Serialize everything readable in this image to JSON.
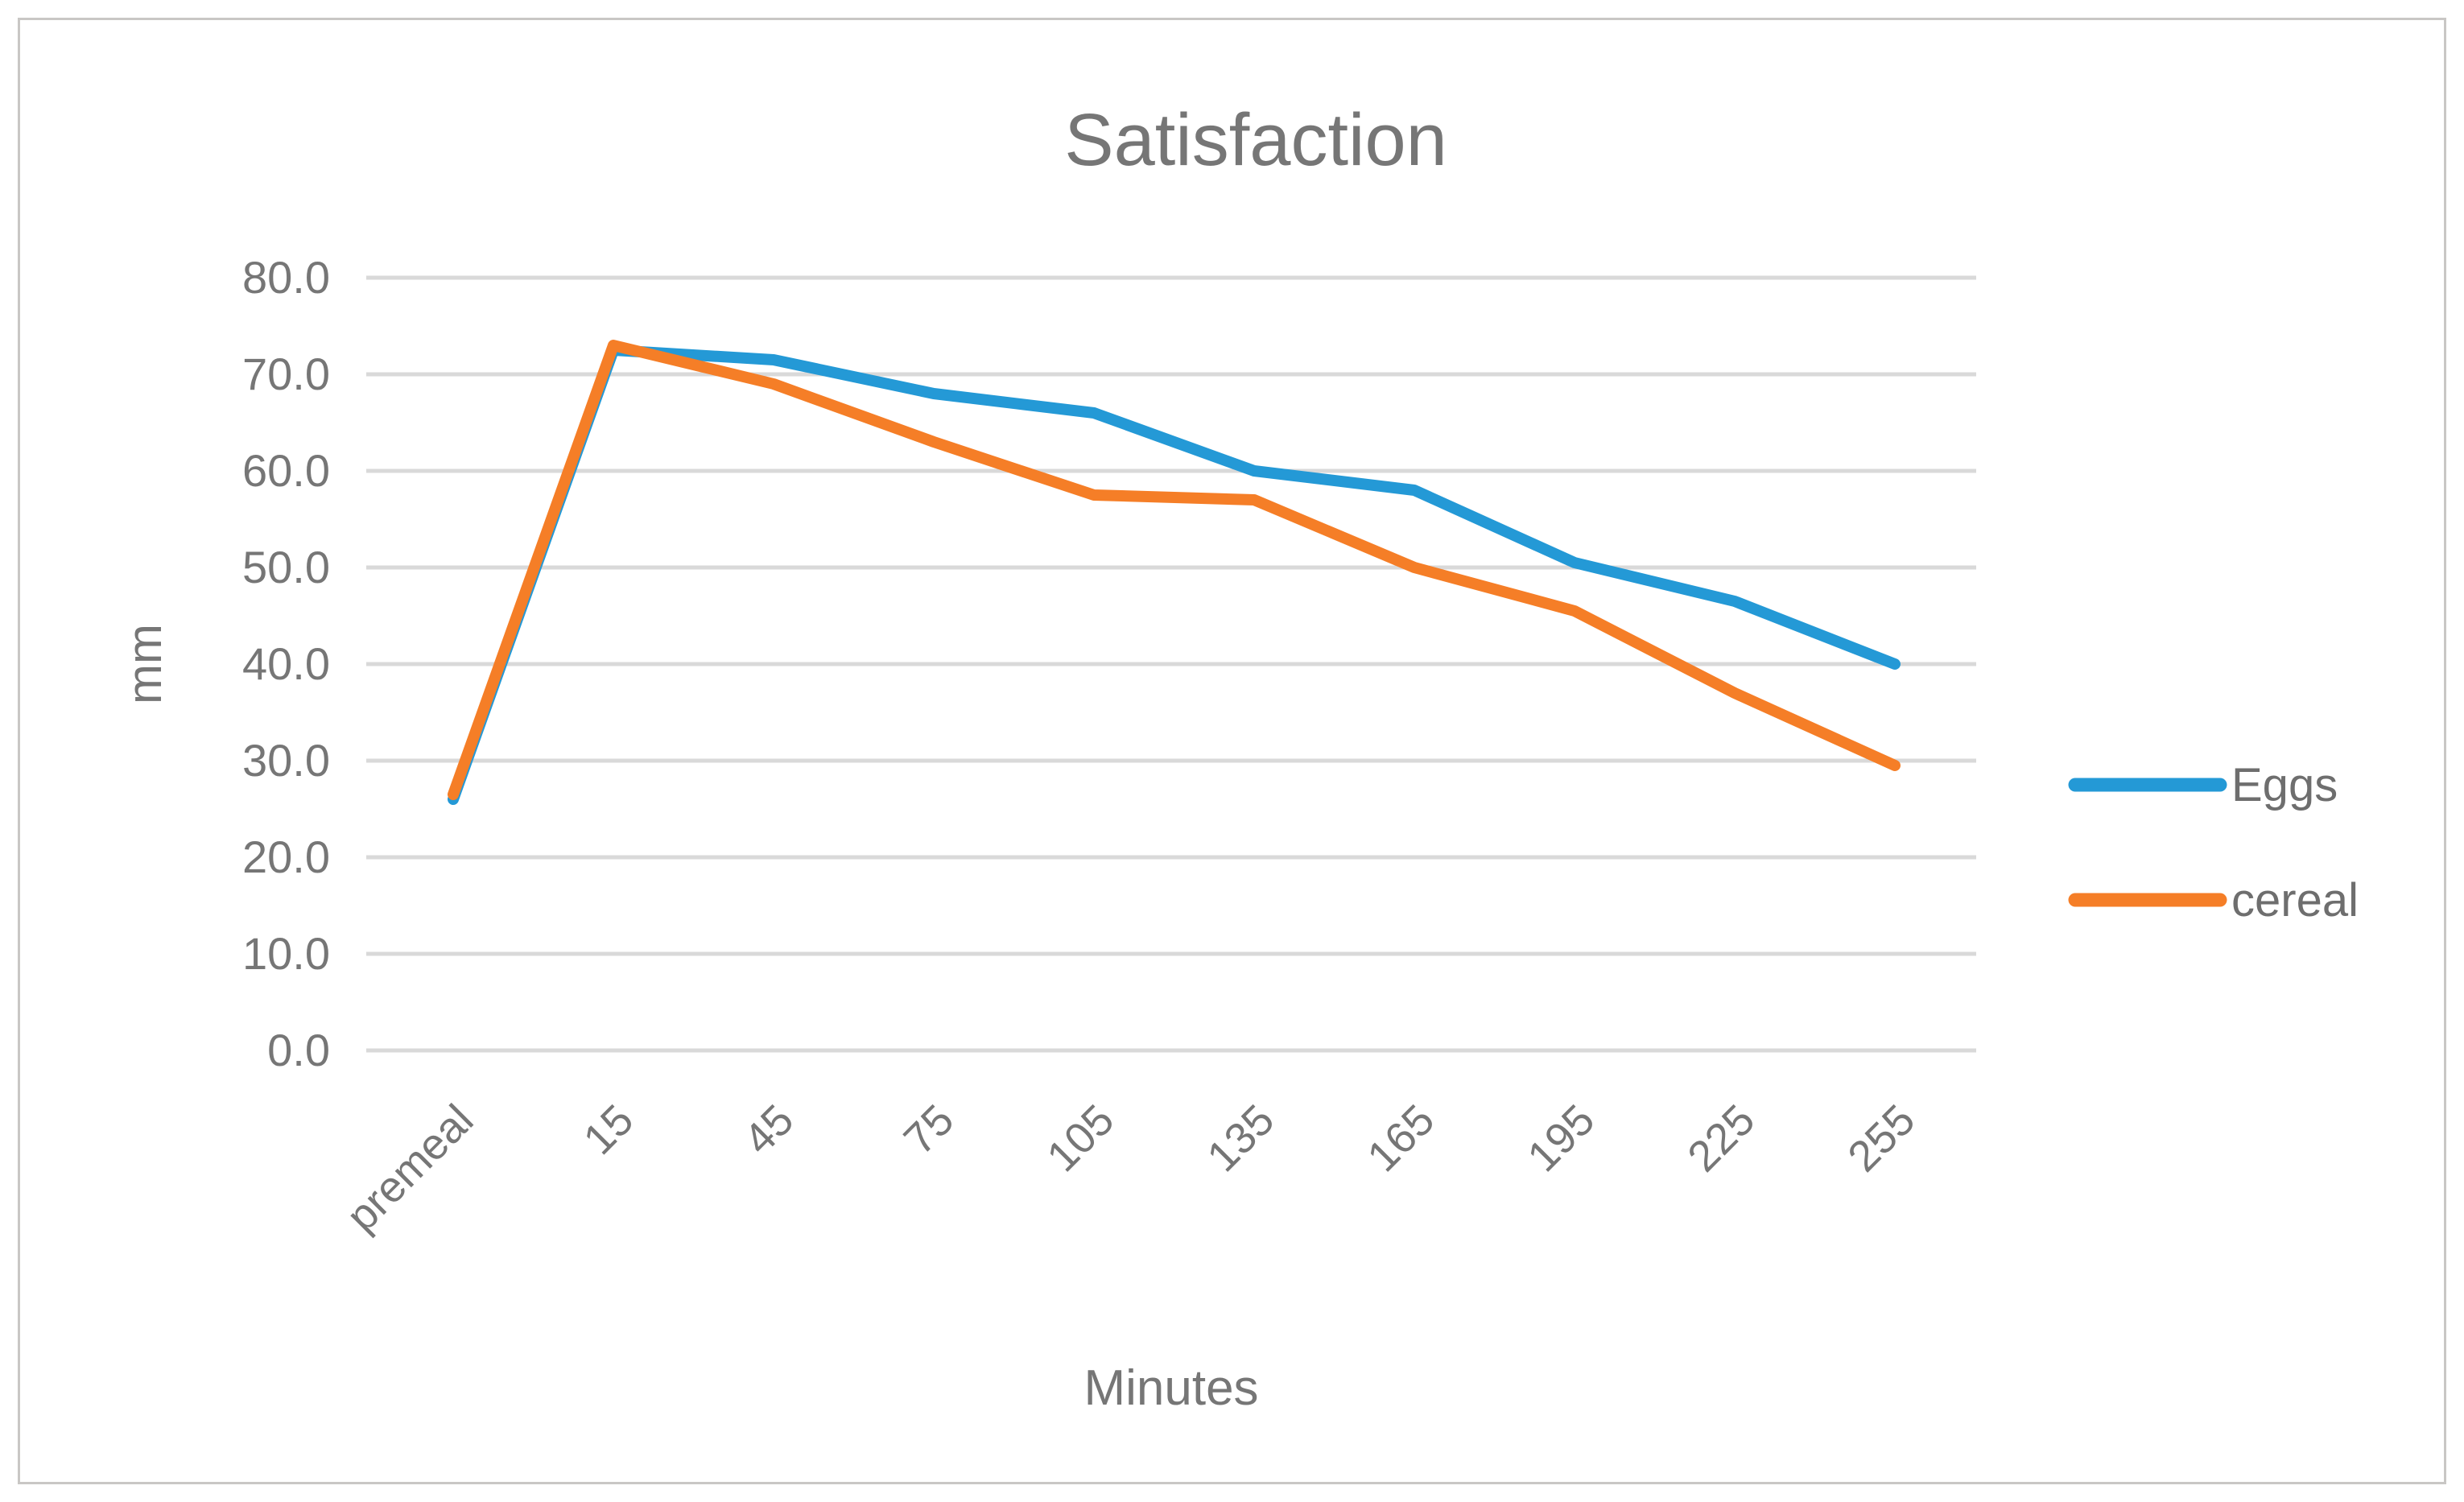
{
  "chart_data": {
    "type": "line",
    "title": "Satisfaction",
    "xlabel": "Minutes",
    "ylabel": "mm",
    "categories": [
      "premeal",
      "15",
      "45",
      "75",
      "105",
      "135",
      "165",
      "195",
      "225",
      "255"
    ],
    "series": [
      {
        "name": "Eggs",
        "color": "#2499d6",
        "values": [
          26.0,
          72.5,
          71.5,
          68.0,
          66.0,
          60.0,
          58.0,
          50.5,
          46.5,
          40.0
        ]
      },
      {
        "name": "cereal",
        "color": "#f57e27",
        "values": [
          26.5,
          73.0,
          69.0,
          63.0,
          57.5,
          57.0,
          50.0,
          45.5,
          37.0,
          29.5
        ]
      }
    ],
    "ylim": [
      0,
      80
    ],
    "ytick_step": 10,
    "yticks": [
      "0.0",
      "10.0",
      "20.0",
      "30.0",
      "40.0",
      "50.0",
      "60.0",
      "70.0",
      "80.0"
    ],
    "grid": "horizontal",
    "gridline_color": "#d9d9d9",
    "text_color": "#767676",
    "legend_position": "right",
    "legend_entries": [
      "Eggs",
      "cereal"
    ]
  }
}
